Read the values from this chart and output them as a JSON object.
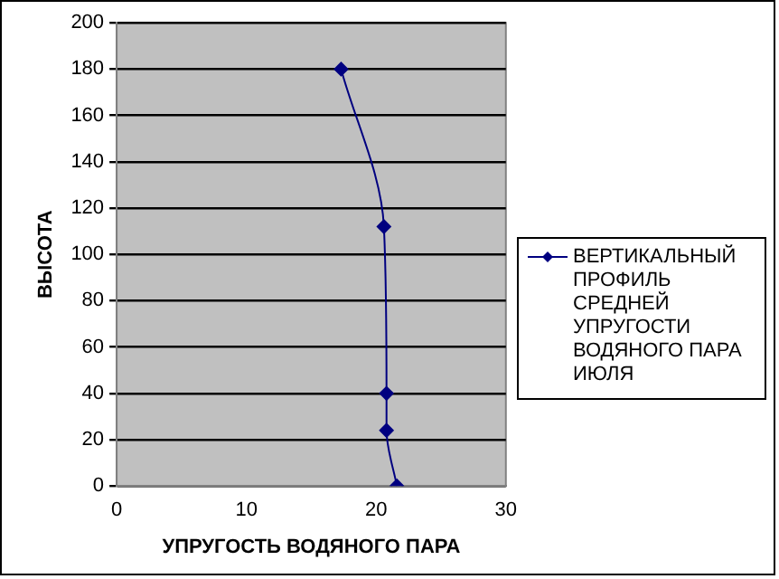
{
  "chart_data": {
    "type": "line",
    "xlabel": "УПРУГОСТЬ ВОДЯНОГО ПАРА",
    "ylabel": "ВЫСОТА",
    "series": [
      {
        "name": "ВЕРТИКАЛЬНЫЙ ПРОФИЛЬ СРЕДНЕЙ УПРУГОСТИ ВОДЯНОГО ПАРА ИЮЛЯ",
        "color": "#000080",
        "x": [
          21.6,
          20.8,
          20.8,
          20.6,
          17.3
        ],
        "values": [
          0,
          24,
          40,
          112,
          180
        ]
      }
    ],
    "xlim": [
      0,
      30
    ],
    "xticks": [
      0,
      10,
      20,
      30
    ],
    "ylim": [
      0,
      200
    ],
    "yticks": [
      0,
      20,
      40,
      60,
      80,
      100,
      120,
      140,
      160,
      180,
      200
    ],
    "grid": "y",
    "legend": "right",
    "marker": "diamond",
    "line_style": "solid"
  }
}
